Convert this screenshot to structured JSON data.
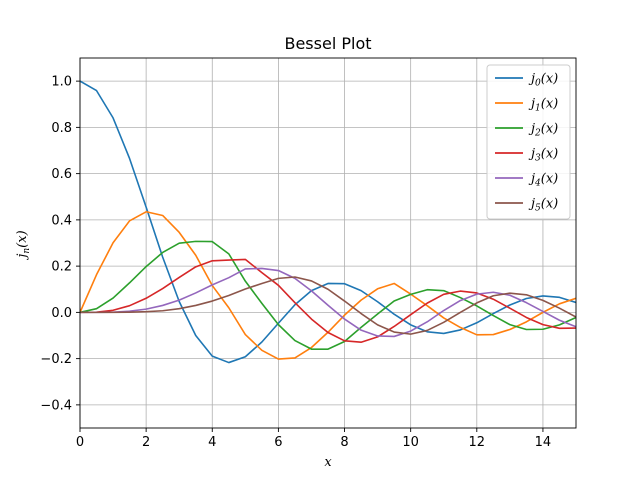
{
  "chart_data": {
    "type": "line",
    "title": "Bessel Plot",
    "xlabel": "x",
    "ylabel": "jn(x)",
    "xlim": [
      0,
      15
    ],
    "ylim": [
      -0.5,
      1.1
    ],
    "xticks": [
      0,
      2,
      4,
      6,
      8,
      10,
      12,
      14
    ],
    "xtick_labels": [
      "0",
      "2",
      "4",
      "6",
      "8",
      "10",
      "12",
      "14"
    ],
    "yticks": [
      -0.4,
      -0.2,
      0.0,
      0.2,
      0.4,
      0.6,
      0.8,
      1.0
    ],
    "ytick_labels": [
      "−0.4",
      "−0.2",
      "0.0",
      "0.2",
      "0.4",
      "0.6",
      "0.8",
      "1.0"
    ],
    "grid": true,
    "legend_position": "upper right",
    "x": [
      0.0,
      0.5,
      1.0,
      1.5,
      2.0,
      2.5,
      3.0,
      3.5,
      4.0,
      4.5,
      5.0,
      5.5,
      6.0,
      6.5,
      7.0,
      7.5,
      8.0,
      8.5,
      9.0,
      9.5,
      10.0,
      10.5,
      11.0,
      11.5,
      12.0,
      12.5,
      13.0,
      13.5,
      14.0,
      14.5,
      15.0
    ],
    "series": [
      {
        "name": "j0(x)",
        "sub": "0",
        "color": "#1f77b4",
        "values": [
          1.0,
          0.959,
          0.841,
          0.665,
          0.455,
          0.239,
          0.047,
          -0.1,
          -0.189,
          -0.217,
          -0.192,
          -0.128,
          -0.047,
          0.033,
          0.094,
          0.125,
          0.124,
          0.094,
          0.046,
          -0.008,
          -0.054,
          -0.084,
          -0.091,
          -0.076,
          -0.045,
          -0.005,
          0.032,
          0.06,
          0.071,
          0.065,
          0.043
        ]
      },
      {
        "name": "j1(x)",
        "sub": "1",
        "color": "#ff7f0e",
        "values": [
          0.0,
          0.163,
          0.301,
          0.396,
          0.435,
          0.419,
          0.346,
          0.247,
          0.116,
          0.02,
          -0.096,
          -0.164,
          -0.202,
          -0.197,
          -0.152,
          -0.086,
          -0.012,
          0.053,
          0.102,
          0.125,
          0.079,
          0.029,
          -0.024,
          -0.065,
          -0.097,
          -0.096,
          -0.074,
          -0.041,
          0.0,
          0.037,
          0.061
        ]
      },
      {
        "name": "j2(x)",
        "sub": "2",
        "color": "#2ca02c",
        "values": [
          0.0,
          0.016,
          0.062,
          0.128,
          0.198,
          0.259,
          0.299,
          0.307,
          0.306,
          0.253,
          0.135,
          0.039,
          -0.053,
          -0.122,
          -0.159,
          -0.159,
          -0.126,
          -0.065,
          -0.007,
          0.049,
          0.078,
          0.098,
          0.094,
          0.064,
          0.028,
          -0.014,
          -0.053,
          -0.074,
          -0.073,
          -0.054,
          -0.022
        ]
      },
      {
        "name": "j3(x)",
        "sub": "3",
        "color": "#d62728",
        "values": [
          0.0,
          0.001,
          0.009,
          0.029,
          0.061,
          0.103,
          0.151,
          0.197,
          0.223,
          0.226,
          0.229,
          0.172,
          0.117,
          0.042,
          -0.029,
          -0.087,
          -0.123,
          -0.129,
          -0.106,
          -0.061,
          -0.01,
          0.04,
          0.078,
          0.092,
          0.084,
          0.057,
          0.018,
          -0.022,
          -0.053,
          -0.069,
          -0.068
        ]
      },
      {
        "name": "j4(x)",
        "sub": "4",
        "color": "#9467bd",
        "values": [
          0.0,
          0.0,
          0.001,
          0.005,
          0.014,
          0.03,
          0.053,
          0.084,
          0.119,
          0.15,
          0.188,
          0.19,
          0.181,
          0.147,
          0.093,
          0.031,
          -0.029,
          -0.077,
          -0.102,
          -0.104,
          -0.081,
          -0.041,
          0.008,
          0.051,
          0.079,
          0.087,
          0.074,
          0.042,
          0.004,
          -0.034,
          -0.062
        ]
      },
      {
        "name": "j5(x)",
        "sub": "5",
        "color": "#8c564b",
        "values": [
          0.0,
          0.0,
          0.0,
          0.001,
          0.003,
          0.007,
          0.016,
          0.03,
          0.049,
          0.073,
          0.101,
          0.125,
          0.147,
          0.153,
          0.136,
          0.1,
          0.049,
          -0.005,
          -0.054,
          -0.085,
          -0.094,
          -0.078,
          -0.043,
          0.0,
          0.041,
          0.072,
          0.083,
          0.076,
          0.052,
          0.018,
          -0.02
        ]
      }
    ]
  }
}
